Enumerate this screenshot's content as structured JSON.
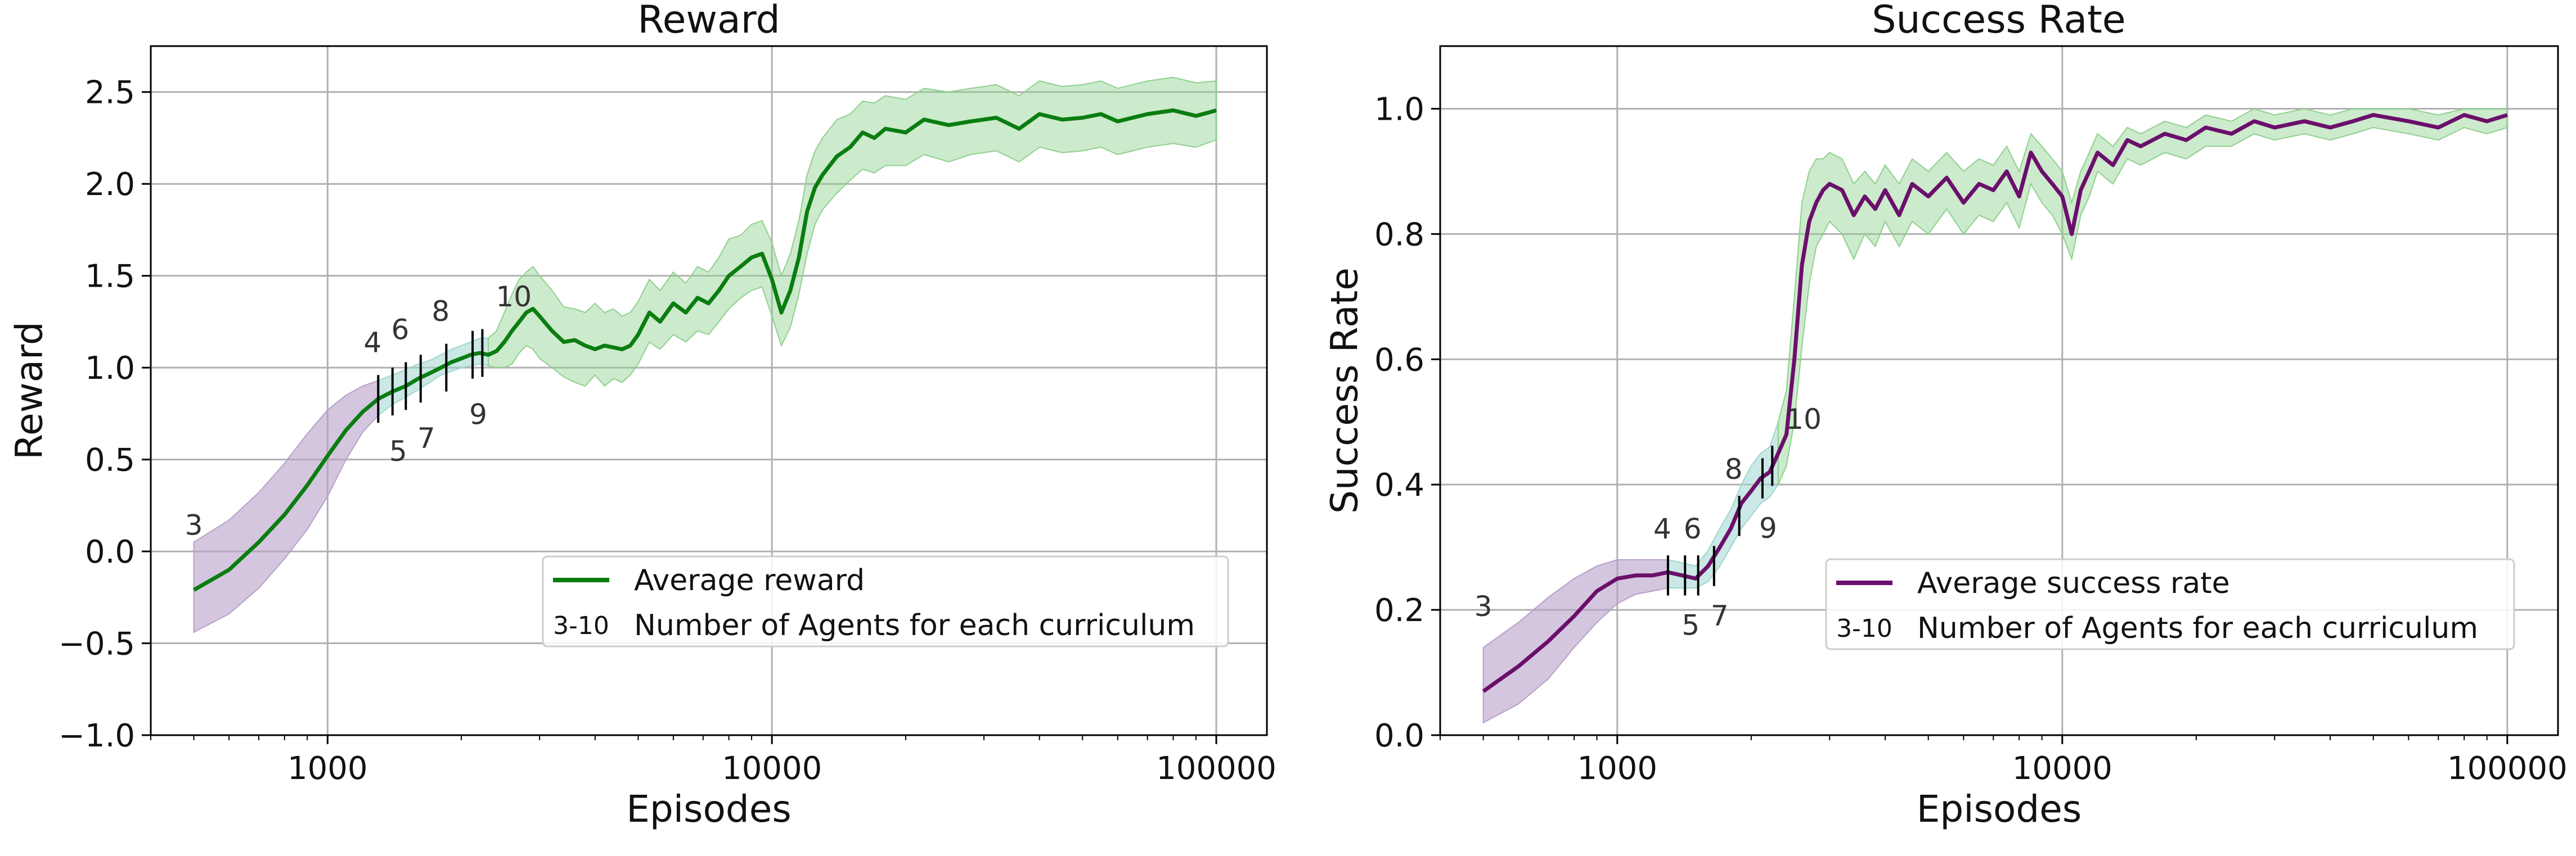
{
  "chart_data": [
    {
      "type": "line",
      "title": "Reward",
      "xlabel": "Episodes",
      "ylabel": "Reward",
      "x_scale": "log",
      "xlim": [
        400,
        130000
      ],
      "ylim": [
        -1.0,
        2.75
      ],
      "grid": true,
      "x_ticks": [
        1000,
        10000,
        100000
      ],
      "x_tick_labels": [
        "1000",
        "10000",
        "100000"
      ],
      "y_ticks": [
        -1.0,
        -0.5,
        0.0,
        0.5,
        1.0,
        1.5,
        2.0,
        2.5
      ],
      "y_tick_labels": [
        "−1.0",
        "−0.5",
        "0.0",
        "0.5",
        "1.0",
        "1.5",
        "2.0",
        "2.5"
      ],
      "legend_position": "lower-right",
      "legend": [
        {
          "marker": "line",
          "label": "Average reward"
        },
        {
          "marker": "3-10",
          "label": "Number of Agents for each curriculum"
        }
      ],
      "colors": {
        "line": "#0a7d10",
        "band_main": "#8fd08f",
        "band_early": "#b7a0c8",
        "band_mid": "#9fd6cf"
      },
      "series": [
        {
          "name": "Average reward",
          "x": [
            500,
            600,
            700,
            800,
            900,
            1000,
            1100,
            1200,
            1300,
            1400,
            1500,
            1600,
            1700,
            1800,
            1900,
            2000,
            2100,
            2200,
            2300,
            2400,
            2500,
            2600,
            2700,
            2800,
            2900,
            3000,
            3200,
            3400,
            3600,
            3800,
            4000,
            4200,
            4400,
            4600,
            4800,
            5000,
            5300,
            5600,
            6000,
            6400,
            6800,
            7200,
            7600,
            8000,
            8500,
            9000,
            9500,
            10000,
            10500,
            11000,
            11500,
            12000,
            12500,
            13000,
            14000,
            15000,
            16000,
            17000,
            18000,
            20000,
            22000,
            25000,
            28000,
            32000,
            36000,
            40000,
            45000,
            50000,
            55000,
            60000,
            70000,
            80000,
            90000,
            100000
          ],
          "y": [
            -0.21,
            -0.1,
            0.05,
            0.2,
            0.36,
            0.52,
            0.66,
            0.76,
            0.83,
            0.87,
            0.9,
            0.94,
            0.97,
            1.0,
            1.03,
            1.05,
            1.07,
            1.08,
            1.07,
            1.09,
            1.14,
            1.2,
            1.25,
            1.3,
            1.32,
            1.28,
            1.2,
            1.14,
            1.15,
            1.12,
            1.1,
            1.12,
            1.11,
            1.1,
            1.12,
            1.18,
            1.3,
            1.25,
            1.35,
            1.3,
            1.38,
            1.35,
            1.42,
            1.5,
            1.55,
            1.6,
            1.62,
            1.48,
            1.3,
            1.42,
            1.6,
            1.85,
            1.98,
            2.05,
            2.15,
            2.2,
            2.28,
            2.25,
            2.3,
            2.28,
            2.35,
            2.32,
            2.34,
            2.36,
            2.3,
            2.38,
            2.35,
            2.36,
            2.38,
            2.34,
            2.38,
            2.4,
            2.37,
            2.4
          ],
          "lower": [
            -0.44,
            -0.34,
            -0.2,
            -0.04,
            0.12,
            0.3,
            0.5,
            0.65,
            0.74,
            0.8,
            0.84,
            0.88,
            0.92,
            0.96,
            0.98,
            1.0,
            1.01,
            1.02,
            1.01,
            1.0,
            1.0,
            1.02,
            1.08,
            1.12,
            1.1,
            1.05,
            1.0,
            0.95,
            0.92,
            0.9,
            0.96,
            0.9,
            0.94,
            0.92,
            0.96,
            1.02,
            1.14,
            1.1,
            1.18,
            1.14,
            1.2,
            1.18,
            1.25,
            1.32,
            1.38,
            1.42,
            1.44,
            1.28,
            1.12,
            1.22,
            1.4,
            1.62,
            1.78,
            1.86,
            1.95,
            2.02,
            2.08,
            2.06,
            2.1,
            2.1,
            2.16,
            2.12,
            2.16,
            2.18,
            2.12,
            2.2,
            2.17,
            2.18,
            2.2,
            2.16,
            2.2,
            2.22,
            2.2,
            2.24
          ],
          "upper": [
            0.05,
            0.17,
            0.32,
            0.48,
            0.64,
            0.77,
            0.85,
            0.9,
            0.93,
            0.96,
            0.99,
            1.02,
            1.04,
            1.07,
            1.1,
            1.12,
            1.14,
            1.16,
            1.16,
            1.2,
            1.3,
            1.4,
            1.48,
            1.52,
            1.55,
            1.5,
            1.42,
            1.33,
            1.32,
            1.3,
            1.35,
            1.3,
            1.32,
            1.28,
            1.3,
            1.36,
            1.48,
            1.42,
            1.52,
            1.46,
            1.55,
            1.52,
            1.6,
            1.7,
            1.72,
            1.78,
            1.8,
            1.68,
            1.5,
            1.62,
            1.8,
            2.05,
            2.18,
            2.25,
            2.35,
            2.38,
            2.45,
            2.44,
            2.48,
            2.46,
            2.52,
            2.5,
            2.52,
            2.54,
            2.48,
            2.56,
            2.53,
            2.54,
            2.56,
            2.52,
            2.56,
            2.58,
            2.55,
            2.56
          ]
        }
      ],
      "curriculum_markers": [
        {
          "label": "3",
          "x": 500,
          "y_center": -0.21
        },
        {
          "label": "4",
          "x": 1300,
          "y_center": 0.83
        },
        {
          "label": "5",
          "x": 1400,
          "y_center": 0.87
        },
        {
          "label": "6",
          "x": 1500,
          "y_center": 0.9
        },
        {
          "label": "7",
          "x": 1620,
          "y_center": 0.94
        },
        {
          "label": "8",
          "x": 1850,
          "y_center": 1.0
        },
        {
          "label": "9",
          "x": 2120,
          "y_center": 1.07
        },
        {
          "label": "10",
          "x": 2230,
          "y_center": 1.08
        }
      ]
    },
    {
      "type": "line",
      "title": "Success Rate",
      "xlabel": "Episodes",
      "ylabel": "Success Rate",
      "x_scale": "log",
      "xlim": [
        400,
        130000
      ],
      "ylim": [
        0.0,
        1.1
      ],
      "grid": true,
      "x_ticks": [
        1000,
        10000,
        100000
      ],
      "x_tick_labels": [
        "1000",
        "10000",
        "100000"
      ],
      "y_ticks": [
        0.0,
        0.2,
        0.4,
        0.6,
        0.8,
        1.0
      ],
      "y_tick_labels": [
        "0.0",
        "0.2",
        "0.4",
        "0.6",
        "0.8",
        "1.0"
      ],
      "legend_position": "lower-right",
      "legend": [
        {
          "marker": "line",
          "label": "Average success rate"
        },
        {
          "marker": "3-10",
          "label": "Number of Agents for each curriculum"
        }
      ],
      "colors": {
        "line": "#6b0f6b",
        "band_main": "#8fd08f",
        "band_early": "#b7a0c8",
        "band_mid": "#9fd6cf"
      },
      "series": [
        {
          "name": "Average success rate",
          "x": [
            500,
            600,
            700,
            800,
            900,
            1000,
            1100,
            1200,
            1300,
            1400,
            1500,
            1600,
            1700,
            1800,
            1900,
            2000,
            2100,
            2200,
            2300,
            2400,
            2500,
            2600,
            2700,
            2800,
            2900,
            3000,
            3200,
            3400,
            3600,
            3800,
            4000,
            4300,
            4600,
            5000,
            5500,
            6000,
            6500,
            7000,
            7500,
            8000,
            8500,
            9000,
            9500,
            10000,
            10500,
            11000,
            11500,
            12000,
            13000,
            14000,
            15000,
            17000,
            19000,
            21000,
            24000,
            27000,
            30000,
            35000,
            40000,
            45000,
            50000,
            60000,
            70000,
            80000,
            90000,
            100000
          ],
          "y": [
            0.07,
            0.11,
            0.15,
            0.19,
            0.23,
            0.25,
            0.255,
            0.255,
            0.26,
            0.255,
            0.25,
            0.27,
            0.3,
            0.33,
            0.37,
            0.39,
            0.41,
            0.42,
            0.45,
            0.48,
            0.6,
            0.75,
            0.82,
            0.85,
            0.87,
            0.88,
            0.87,
            0.83,
            0.86,
            0.84,
            0.87,
            0.83,
            0.88,
            0.86,
            0.89,
            0.85,
            0.88,
            0.87,
            0.9,
            0.86,
            0.93,
            0.9,
            0.88,
            0.86,
            0.8,
            0.87,
            0.9,
            0.93,
            0.91,
            0.95,
            0.94,
            0.96,
            0.95,
            0.97,
            0.96,
            0.98,
            0.97,
            0.98,
            0.97,
            0.98,
            0.99,
            0.98,
            0.97,
            0.99,
            0.98,
            0.99
          ],
          "lower": [
            0.02,
            0.05,
            0.09,
            0.14,
            0.18,
            0.21,
            0.225,
            0.23,
            0.235,
            0.235,
            0.235,
            0.245,
            0.27,
            0.3,
            0.33,
            0.35,
            0.37,
            0.38,
            0.4,
            0.43,
            0.5,
            0.62,
            0.72,
            0.78,
            0.8,
            0.82,
            0.8,
            0.76,
            0.8,
            0.78,
            0.82,
            0.78,
            0.82,
            0.8,
            0.84,
            0.8,
            0.83,
            0.82,
            0.85,
            0.81,
            0.88,
            0.85,
            0.83,
            0.8,
            0.76,
            0.83,
            0.86,
            0.9,
            0.88,
            0.92,
            0.91,
            0.93,
            0.92,
            0.94,
            0.94,
            0.96,
            0.95,
            0.96,
            0.95,
            0.96,
            0.97,
            0.96,
            0.95,
            0.97,
            0.96,
            0.97
          ],
          "upper": [
            0.14,
            0.18,
            0.22,
            0.25,
            0.27,
            0.28,
            0.28,
            0.28,
            0.28,
            0.275,
            0.27,
            0.295,
            0.33,
            0.36,
            0.4,
            0.43,
            0.45,
            0.46,
            0.5,
            0.55,
            0.7,
            0.85,
            0.9,
            0.92,
            0.92,
            0.93,
            0.92,
            0.88,
            0.9,
            0.88,
            0.91,
            0.88,
            0.92,
            0.9,
            0.93,
            0.9,
            0.92,
            0.91,
            0.94,
            0.9,
            0.96,
            0.94,
            0.92,
            0.9,
            0.85,
            0.9,
            0.93,
            0.96,
            0.94,
            0.97,
            0.96,
            0.98,
            0.97,
            0.99,
            0.98,
            1.0,
            0.99,
            1.0,
            0.99,
            1.0,
            1.0,
            1.0,
            0.99,
            1.0,
            1.0,
            1.0
          ]
        }
      ],
      "curriculum_markers": [
        {
          "label": "3",
          "x": 500,
          "y_center": 0.07
        },
        {
          "label": "4",
          "x": 1300,
          "y_center": 0.255
        },
        {
          "label": "5",
          "x": 1420,
          "y_center": 0.255
        },
        {
          "label": "6",
          "x": 1520,
          "y_center": 0.255
        },
        {
          "label": "7",
          "x": 1650,
          "y_center": 0.27
        },
        {
          "label": "8",
          "x": 1880,
          "y_center": 0.35
        },
        {
          "label": "9",
          "x": 2120,
          "y_center": 0.41
        },
        {
          "label": "10",
          "x": 2230,
          "y_center": 0.43
        }
      ]
    }
  ]
}
